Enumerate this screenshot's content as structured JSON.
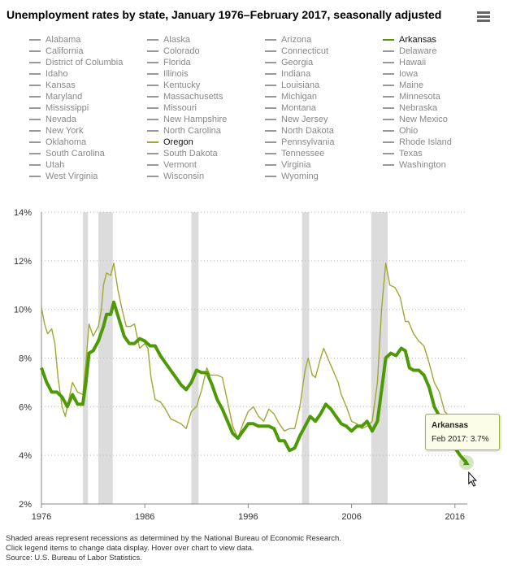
{
  "title": "Unemployment rates by state, January 1976–February 2017, seasonally adjusted",
  "menu_icon": "hamburger-menu-icon",
  "legend": [
    {
      "label": "Alabama"
    },
    {
      "label": "Alaska"
    },
    {
      "label": "Arizona"
    },
    {
      "label": "Arkansas",
      "active": true,
      "color": "#4e9a06"
    },
    {
      "label": "California"
    },
    {
      "label": "Colorado"
    },
    {
      "label": "Connecticut"
    },
    {
      "label": "Delaware"
    },
    {
      "label": "District of Columbia"
    },
    {
      "label": "Florida"
    },
    {
      "label": "Georgia"
    },
    {
      "label": "Hawaii"
    },
    {
      "label": "Idaho"
    },
    {
      "label": "Illinois"
    },
    {
      "label": "Indiana"
    },
    {
      "label": "Iowa"
    },
    {
      "label": "Kansas"
    },
    {
      "label": "Kentucky"
    },
    {
      "label": "Louisiana"
    },
    {
      "label": "Maine"
    },
    {
      "label": "Maryland"
    },
    {
      "label": "Massachusetts"
    },
    {
      "label": "Michigan"
    },
    {
      "label": "Minnesota"
    },
    {
      "label": "Mississippi"
    },
    {
      "label": "Missouri"
    },
    {
      "label": "Montana"
    },
    {
      "label": "Nebraska"
    },
    {
      "label": "Nevada"
    },
    {
      "label": "New Hampshire"
    },
    {
      "label": "New Jersey"
    },
    {
      "label": "New Mexico"
    },
    {
      "label": "New York"
    },
    {
      "label": "North Carolina"
    },
    {
      "label": "North Dakota"
    },
    {
      "label": "Ohio"
    },
    {
      "label": "Oklahoma"
    },
    {
      "label": "Oregon",
      "active": true,
      "color": "#a0a832"
    },
    {
      "label": "Pennsylvania"
    },
    {
      "label": "Rhode Island"
    },
    {
      "label": "South Carolina"
    },
    {
      "label": "South Dakota"
    },
    {
      "label": "Tennessee"
    },
    {
      "label": "Texas"
    },
    {
      "label": "Utah"
    },
    {
      "label": "Vermont"
    },
    {
      "label": "Virginia"
    },
    {
      "label": "Washington"
    },
    {
      "label": "West Virginia"
    },
    {
      "label": "Wisconsin"
    },
    {
      "label": "Wyoming"
    }
  ],
  "chart_data": {
    "type": "line",
    "title": "Unemployment rates by state, January 1976–February 2017, seasonally adjusted",
    "xlim": [
      1976,
      2017.2
    ],
    "ylim": [
      2,
      14
    ],
    "x_ticks": [
      "1976",
      "1986",
      "1996",
      "2006",
      "2016"
    ],
    "y_ticks": [
      "2%",
      "4%",
      "6%",
      "8%",
      "10%",
      "12%",
      "14%"
    ],
    "grid": "horizontal dotted",
    "recessions": [
      [
        1980.0,
        1980.5
      ],
      [
        1981.5,
        1982.9
      ],
      [
        1990.5,
        1991.2
      ],
      [
        2001.2,
        2001.9
      ],
      [
        2007.9,
        2009.5
      ]
    ],
    "series": [
      {
        "name": "Arkansas",
        "color": "#4e9a06",
        "x": [
          1976,
          1976.5,
          1977,
          1977.5,
          1978,
          1978.5,
          1979,
          1979.5,
          1980,
          1980.3,
          1980.6,
          1981,
          1981.5,
          1982,
          1982.3,
          1982.7,
          1983,
          1983.5,
          1984,
          1984.5,
          1985,
          1985.5,
          1986,
          1986.5,
          1987,
          1987.5,
          1988,
          1988.5,
          1989,
          1989.5,
          1990,
          1990.5,
          1991,
          1991.5,
          1992,
          1992.5,
          1993,
          1993.5,
          1994,
          1994.5,
          1995,
          1995.5,
          1996,
          1996.5,
          1997,
          1998,
          1998.5,
          1999,
          1999.5,
          2000,
          2000.5,
          2001,
          2001.5,
          2002,
          2002.5,
          2003,
          2003.5,
          2004,
          2004.5,
          2005,
          2005.5,
          2006,
          2006.5,
          2007,
          2007.5,
          2008,
          2008.5,
          2009,
          2009.3,
          2009.8,
          2010.3,
          2010.8,
          2011.2,
          2011.6,
          2012,
          2012.5,
          2013,
          2013.5,
          2014,
          2014.5,
          2015,
          2015.5,
          2016,
          2016.5,
          2017.1
        ],
        "y": [
          7.6,
          7.0,
          6.6,
          6.6,
          6.4,
          6.0,
          6.5,
          6.1,
          6.1,
          7.0,
          8.2,
          8.3,
          8.7,
          9.3,
          9.8,
          9.8,
          10.3,
          9.6,
          8.9,
          8.6,
          8.6,
          8.8,
          8.7,
          8.5,
          8.5,
          8.1,
          7.8,
          7.5,
          7.2,
          6.9,
          6.7,
          7.0,
          7.5,
          7.4,
          7.4,
          6.9,
          6.3,
          5.9,
          5.4,
          4.9,
          4.7,
          5.0,
          5.3,
          5.3,
          5.2,
          5.2,
          5.1,
          4.6,
          4.6,
          4.2,
          4.3,
          4.8,
          5.2,
          5.6,
          5.4,
          5.7,
          6.1,
          5.9,
          5.6,
          5.3,
          5.2,
          5.0,
          5.2,
          5.2,
          5.4,
          5.0,
          5.4,
          7.0,
          8.0,
          8.2,
          8.1,
          8.4,
          8.3,
          7.6,
          7.5,
          7.5,
          7.3,
          6.8,
          6.0,
          5.6,
          5.4,
          5.0,
          4.3,
          4.0,
          3.7
        ]
      },
      {
        "name": "Oregon",
        "color": "#a0a832",
        "x": [
          1976,
          1976.3,
          1976.6,
          1977,
          1977.3,
          1977.6,
          1978,
          1978.3,
          1978.6,
          1979,
          1979.5,
          1980,
          1980.3,
          1980.6,
          1981,
          1981.5,
          1981.8,
          1982,
          1982.3,
          1982.7,
          1983,
          1983.4,
          1983.8,
          1984.2,
          1984.6,
          1985,
          1985.5,
          1986,
          1986.3,
          1986.6,
          1987,
          1987.5,
          1988,
          1988.5,
          1989,
          1989.5,
          1990,
          1990.5,
          1991,
          1991.5,
          1992,
          1992.3,
          1993,
          1993.5,
          1994,
          1994.5,
          1995,
          1995.5,
          1996,
          1996.5,
          1997,
          1997.5,
          1998,
          1998.5,
          1999,
          1999.5,
          2000,
          2000.5,
          2001,
          2001.5,
          2001.8,
          2002.2,
          2002.5,
          2003,
          2003.3,
          2003.7,
          2004.2,
          2004.7,
          2005,
          2005.5,
          2006,
          2006.5,
          2007,
          2007.5,
          2008,
          2008.5,
          2008.9,
          2009.3,
          2009.7,
          2010.2,
          2010.7,
          2011.2,
          2011.5,
          2012,
          2012.5,
          2013,
          2013.5,
          2014,
          2014.5,
          2015,
          2015.5,
          2016,
          2016.5,
          2017.1
        ],
        "y": [
          10.1,
          9.4,
          9.0,
          9.2,
          8.6,
          7.2,
          6.0,
          5.6,
          6.2,
          7.0,
          6.6,
          6.5,
          7.8,
          9.4,
          8.9,
          9.3,
          10.0,
          11.0,
          11.5,
          11.4,
          11.9,
          10.8,
          10.0,
          9.3,
          9.3,
          9.4,
          8.4,
          8.6,
          8.4,
          7.2,
          6.3,
          6.2,
          5.9,
          5.5,
          5.4,
          5.3,
          5.1,
          5.8,
          6.0,
          6.7,
          7.6,
          7.3,
          7.3,
          7.2,
          6.2,
          5.2,
          4.7,
          5.3,
          5.8,
          6.0,
          5.6,
          5.4,
          5.9,
          5.7,
          5.3,
          5.0,
          5.1,
          5.1,
          6.0,
          7.5,
          8.0,
          7.3,
          7.2,
          8.0,
          8.4,
          8.0,
          7.5,
          7.0,
          6.5,
          6.0,
          5.4,
          5.3,
          5.1,
          5.2,
          5.4,
          7.0,
          10.0,
          11.9,
          11.0,
          10.9,
          10.5,
          9.5,
          9.5,
          9.0,
          8.7,
          8.5,
          7.8,
          7.0,
          6.6,
          5.8,
          5.6,
          5.0,
          4.6,
          4.3
        ]
      }
    ]
  },
  "tooltip": {
    "series": "Arkansas",
    "text": "Feb 2017: 3.7%"
  },
  "notes": [
    "Shaded areas represent recessions as determined by the National Bureau of Economic Research.",
    "Click legend items to change data display. Hover over chart to view data.",
    "Source: U.S. Bureau of Labor Statistics."
  ]
}
